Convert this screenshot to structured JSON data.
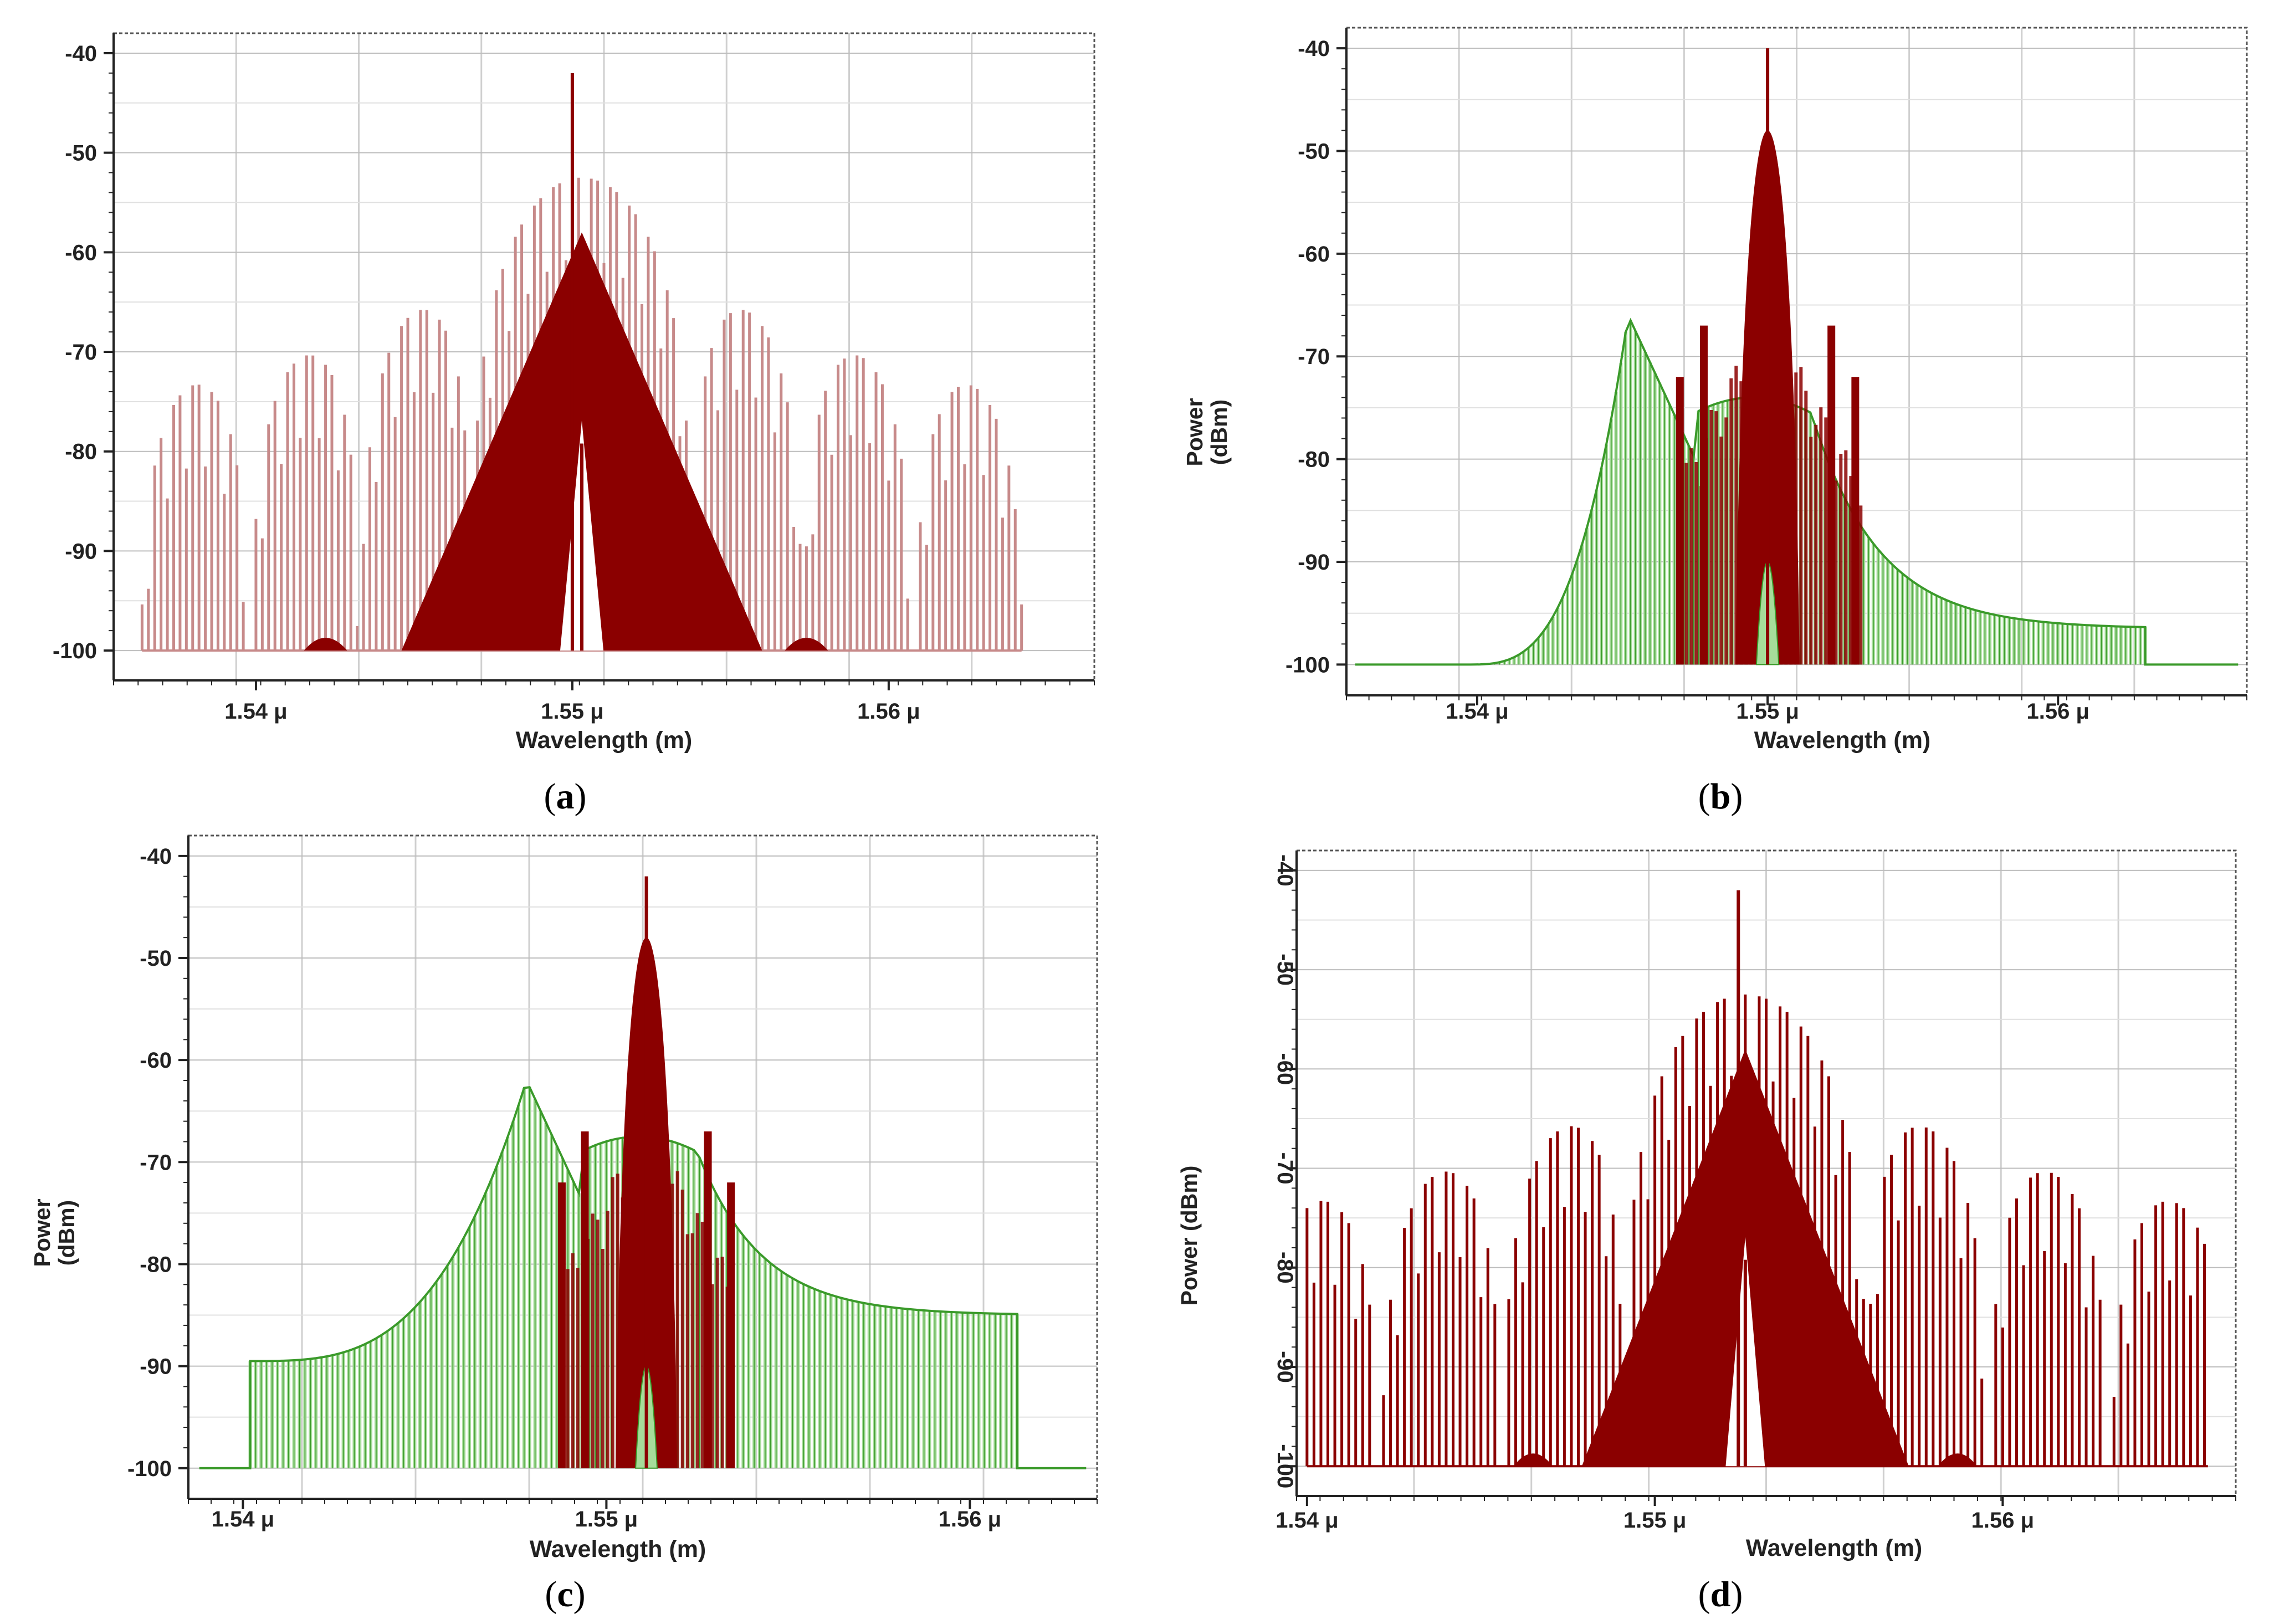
{
  "colors": {
    "red": "#8b0000",
    "red_light": "#c78a8a",
    "green": "#3a9a2a",
    "green_fill": "#a6dc9a",
    "grid": "#cfcfcf"
  },
  "captions": [
    {
      "open": "(",
      "letter": "a",
      "close": ")"
    },
    {
      "open": "(",
      "letter": "b",
      "close": ")"
    },
    {
      "open": "(",
      "letter": "c",
      "close": ")"
    },
    {
      "open": "(",
      "letter": "d",
      "close": ")"
    }
  ],
  "chart_data": [
    {
      "id": "a",
      "type": "bar",
      "title": "",
      "xlabel": "Wavelength (m)",
      "ylabel": "",
      "xlim": [
        1.5355,
        1.5665
      ],
      "ylim": [
        -103,
        -38
      ],
      "yticks": [
        "-40",
        "-50",
        "-60",
        "-70",
        "-80",
        "-90",
        "-100"
      ],
      "xticks": [
        {
          "v": 1.54,
          "label": "1.54 μ"
        },
        {
          "v": 1.55,
          "label": "1.55 μ"
        },
        {
          "v": 1.56,
          "label": "1.56 μ"
        }
      ],
      "rotated_y": false,
      "series": [
        {
          "name": "sinc comb",
          "kind": "sinc",
          "color": "red_light",
          "center": 1.5503,
          "lobe_period": 0.0035,
          "peak": -52.5,
          "floor": -100,
          "comb_start": 1.5364,
          "comb_end": 1.5642,
          "spacing": 0.0002
        },
        {
          "name": "main spectrum",
          "kind": "triangle",
          "color": "red",
          "center": 1.5503,
          "peak": -58,
          "half_width": 0.0057,
          "floor": -100,
          "notch": true,
          "side_bumps": [
            1.5422,
            1.5574
          ],
          "bump_level": -98
        },
        {
          "name": "carrier",
          "kind": "spike",
          "color": "red",
          "x": 1.55,
          "y": -42
        }
      ]
    },
    {
      "id": "b",
      "type": "bar",
      "title": "",
      "xlabel": "Wavelength (m)",
      "ylabel": "Power (dBm)",
      "xlim": [
        1.5355,
        1.5665
      ],
      "ylim": [
        -103,
        -38
      ],
      "yticks": [
        "-40",
        "-50",
        "-60",
        "-70",
        "-80",
        "-90",
        "-100"
      ],
      "xticks": [
        {
          "v": 1.54,
          "label": "1.54 μ"
        },
        {
          "v": 1.55,
          "label": "1.55 μ"
        },
        {
          "v": 1.56,
          "label": "1.56 μ"
        }
      ],
      "rotated_y": false,
      "series": [
        {
          "name": "green spectrum",
          "kind": "green",
          "color": "green",
          "peak_x": 1.5452,
          "peak": -66,
          "plateau": -74,
          "plateau_range": [
            1.5475,
            1.5515
          ],
          "start": 1.5396,
          "end": 1.563,
          "tail": -96.5,
          "floor": -100
        },
        {
          "name": "red spectrum",
          "kind": "redpeak",
          "color": "red",
          "center": 1.55,
          "peak": -48,
          "range": [
            1.5472,
            1.5533
          ],
          "floor": -100
        },
        {
          "name": "carrier",
          "kind": "spike",
          "color": "red",
          "x": 1.55,
          "y": -40
        }
      ]
    },
    {
      "id": "c",
      "type": "bar",
      "title": "",
      "xlabel": "Wavelength (m)",
      "ylabel": "Power (dBm)",
      "xlim": [
        1.5385,
        1.5635
      ],
      "ylim": [
        -103,
        -38
      ],
      "yticks": [
        "-40",
        "-50",
        "-60",
        "-70",
        "-80",
        "-90",
        "-100"
      ],
      "xticks": [
        {
          "v": 1.54,
          "label": "1.54 μ"
        },
        {
          "v": 1.55,
          "label": "1.55 μ"
        },
        {
          "v": 1.56,
          "label": "1.56 μ"
        }
      ],
      "rotated_y": false,
      "series": [
        {
          "name": "green spectrum",
          "kind": "green",
          "color": "green",
          "peak_x": 1.5478,
          "peak": -62,
          "plateau": -67.5,
          "plateau_range": [
            1.5493,
            1.5525
          ],
          "start": 1.5402,
          "end": 1.5613,
          "tail": -85,
          "floor": -100,
          "left_level": -89.5
        },
        {
          "name": "red spectrum",
          "kind": "redpeak",
          "color": "red",
          "center": 1.5511,
          "peak": -48,
          "range": [
            1.5488,
            1.5535
          ],
          "floor": -100
        },
        {
          "name": "carrier",
          "kind": "spike",
          "color": "red",
          "x": 1.5511,
          "y": -42
        }
      ]
    },
    {
      "id": "d",
      "type": "bar",
      "title": "",
      "xlabel": "Wavelength (m)",
      "ylabel": "Power (dBm)",
      "xlim": [
        1.5397,
        1.5667
      ],
      "ylim": [
        -103,
        -38
      ],
      "yticks": [
        "-40",
        "-50",
        "-60",
        "-70",
        "-80",
        "-90",
        "-100"
      ],
      "xticks": [
        {
          "v": 1.54,
          "label": "1.54 μ"
        },
        {
          "v": 1.55,
          "label": "1.55 μ"
        },
        {
          "v": 1.56,
          "label": "1.56 μ"
        }
      ],
      "rotated_y": true,
      "series": [
        {
          "name": "sinc comb",
          "kind": "sinc",
          "color": "red",
          "center": 1.5526,
          "lobe_period": 0.0035,
          "peak": -52.5,
          "floor": -100,
          "comb_start": 1.54,
          "comb_end": 1.5659,
          "spacing": 0.0002
        },
        {
          "name": "main spectrum",
          "kind": "triangle",
          "color": "red",
          "center": 1.5526,
          "peak": -58,
          "half_width": 0.0047,
          "floor": -100,
          "notch": true,
          "side_bumps": [
            1.5465,
            1.5587
          ],
          "bump_level": -98
        },
        {
          "name": "carrier",
          "kind": "spike",
          "color": "red",
          "x": 1.5524,
          "y": -42
        }
      ]
    }
  ]
}
